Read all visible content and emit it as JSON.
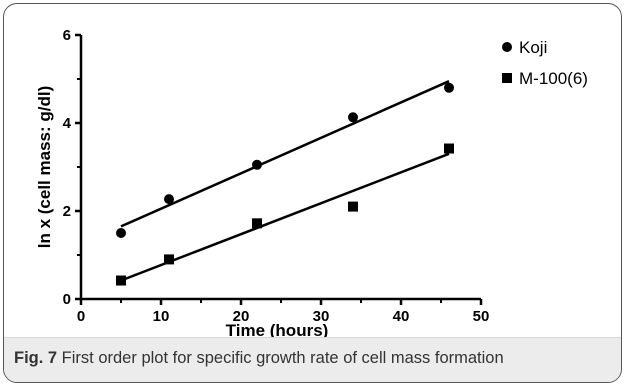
{
  "caption": {
    "label": "Fig. 7",
    "text": " First order plot for specific growth rate of cell mass formation"
  },
  "chart_data": {
    "type": "scatter",
    "xlabel": "Time (hours)",
    "ylabel": "ln x (cell mass: g/dl)",
    "xlim": [
      0,
      50
    ],
    "ylim": [
      0,
      6
    ],
    "xticks": [
      "0",
      "10",
      "20",
      "30",
      "40",
      "50"
    ],
    "yticks": [
      "0",
      "2",
      "4",
      "6"
    ],
    "grid": false,
    "legend_position": "top-right",
    "series": [
      {
        "name": "Koji",
        "marker": "circle",
        "x": [
          5,
          11,
          22,
          34,
          46
        ],
        "y": [
          1.5,
          2.27,
          3.05,
          4.13,
          4.8
        ],
        "fit": {
          "x": [
            5,
            46
          ],
          "y": [
            1.65,
            4.95
          ]
        }
      },
      {
        "name": "M-100(6)",
        "marker": "square",
        "x": [
          5,
          11,
          22,
          34,
          46
        ],
        "y": [
          0.42,
          0.9,
          1.72,
          2.1,
          3.42
        ],
        "fit": {
          "x": [
            5,
            46
          ],
          "y": [
            0.42,
            3.3
          ]
        }
      }
    ]
  }
}
